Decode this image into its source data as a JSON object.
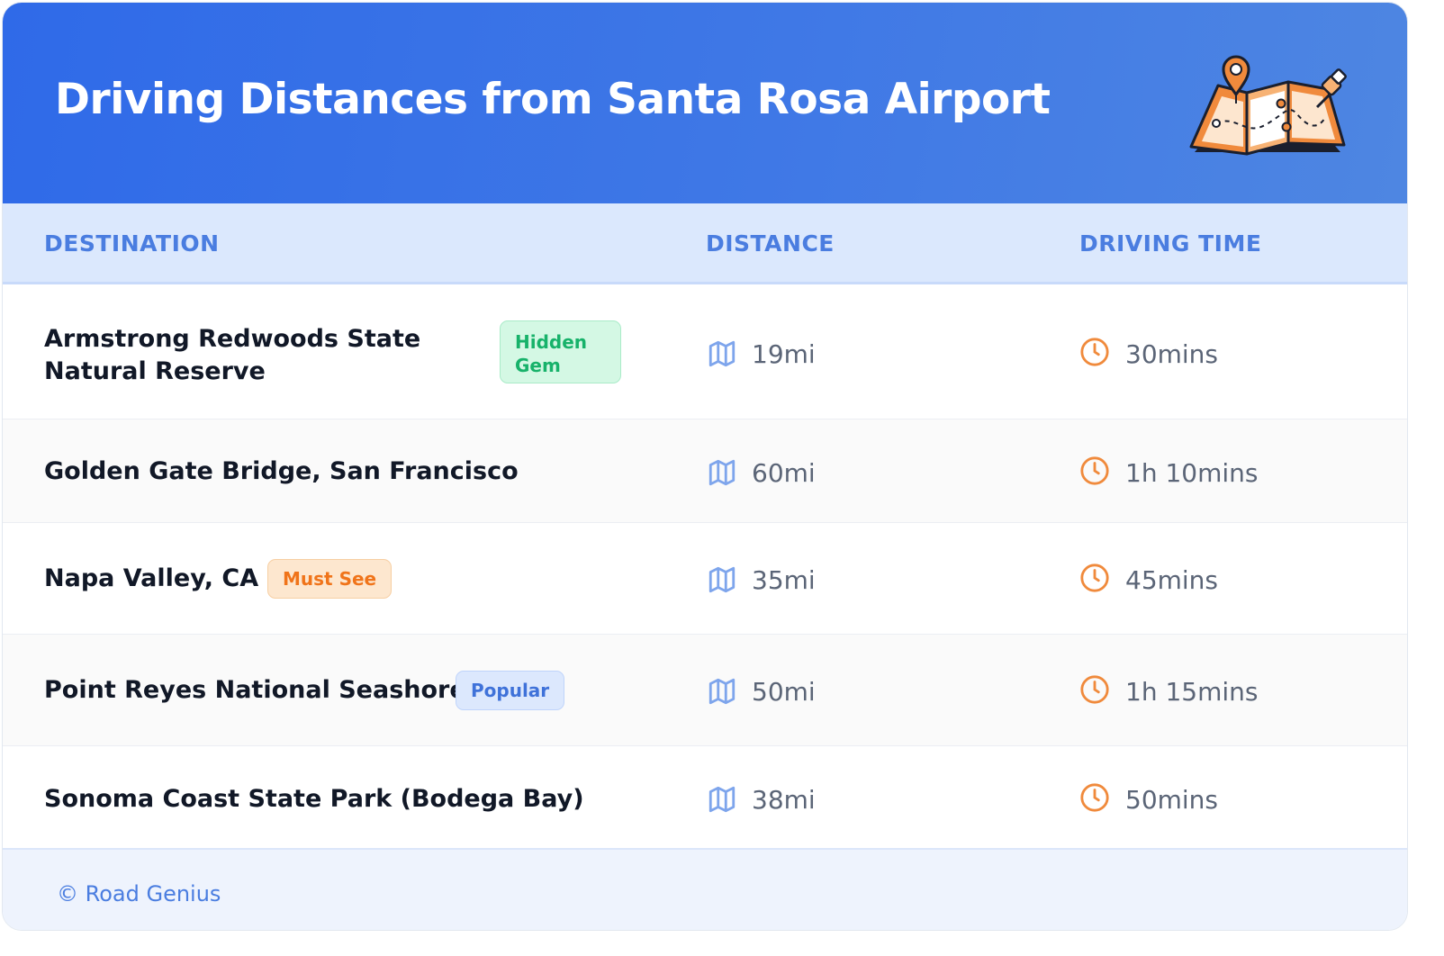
{
  "header": {
    "title": "Driving Distances from Santa Rosa Airport",
    "illustration_icon": "folded-map-with-location-pin-icon"
  },
  "columns": {
    "destination": "DESTINATION",
    "distance": "DISTANCE",
    "driving_time": "DRIVING TIME"
  },
  "rows": [
    {
      "destination": "Armstrong Redwoods State Natural Reserve",
      "badge": "Hidden Gem",
      "badge_color": "#17b26a",
      "distance": "19mi",
      "time": "30mins"
    },
    {
      "destination": "Golden Gate Bridge, San Francisco",
      "badge": "",
      "distance": "60mi",
      "time": "1h 10mins"
    },
    {
      "destination": "Napa Valley, CA",
      "badge": "Must See",
      "badge_color": "#f0741a",
      "distance": "35mi",
      "time": "45mins"
    },
    {
      "destination": "Point Reyes National Seashore",
      "badge": "Popular",
      "badge_color": "#3f72d9",
      "distance": "50mi",
      "time": "1h 15mins"
    },
    {
      "destination": "Sonoma Coast State Park (Bodega Bay)",
      "badge": "",
      "distance": "38mi",
      "time": "50mins"
    }
  ],
  "icons": {
    "distance": "map-icon",
    "time": "clock-icon"
  },
  "colors": {
    "header_start": "#2f6ae8",
    "header_end": "#4e86e2",
    "accent_blue": "#4a7de0",
    "accent_orange": "#f08a3c"
  },
  "footer": {
    "credit": "© Road Genius"
  }
}
